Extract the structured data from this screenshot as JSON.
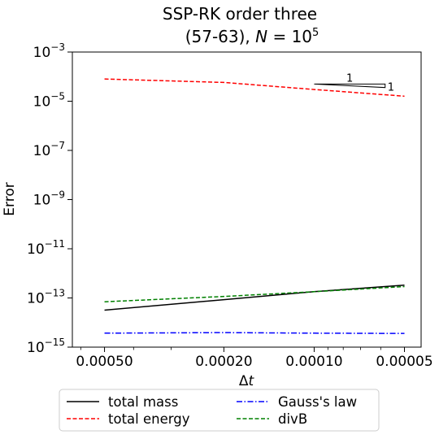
{
  "chart_data": {
    "type": "line",
    "title_line1": "SSP-RK order three",
    "title_line2_prefix": "(57-63), ",
    "title_line2_var": "N",
    "title_line2_eq": " = 10",
    "title_line2_exp": "5",
    "xlabel_delta": "Δ",
    "xlabel_var": "t",
    "ylabel": "Error",
    "x_scale": "log",
    "x_inverted": true,
    "y_scale": "log",
    "xlim": [
      0.00064,
      4.4e-05
    ],
    "ylim": [
      1e-15,
      0.001
    ],
    "x_ticks": [
      {
        "value": 0.0005,
        "label": "0.00050"
      },
      {
        "value": 0.0002,
        "label": "0.00020"
      },
      {
        "value": 0.0001,
        "label": "0.00010"
      },
      {
        "value": 5e-05,
        "label": "0.00005"
      }
    ],
    "y_ticks": [
      {
        "exp": -3,
        "base": "10",
        "sup": "−3"
      },
      {
        "exp": -5,
        "base": "10",
        "sup": "−5"
      },
      {
        "exp": -7,
        "base": "10",
        "sup": "−7"
      },
      {
        "exp": -9,
        "base": "10",
        "sup": "−9"
      },
      {
        "exp": -11,
        "base": "10",
        "sup": "−11"
      },
      {
        "exp": -13,
        "base": "10",
        "sup": "−13"
      },
      {
        "exp": -15,
        "base": "10",
        "sup": "−15"
      }
    ],
    "series": [
      {
        "name": "total mass",
        "color": "#000000",
        "dash": "solid",
        "x": [
          0.0005,
          0.0002,
          0.0001,
          5e-05
        ],
        "y": [
          3.2e-14,
          8.5e-14,
          1.8e-13,
          3.3e-13
        ]
      },
      {
        "name": "total energy",
        "color": "#ff0000",
        "dash": "dashed",
        "x": [
          0.0005,
          0.0002,
          0.0001,
          5e-05
        ],
        "y": [
          8e-05,
          5.8e-05,
          3e-05,
          1.6e-05
        ]
      },
      {
        "name": "Gauss's law",
        "color": "#0000ff",
        "dash": "dashdot",
        "x": [
          0.0005,
          0.0002,
          0.0001,
          5e-05
        ],
        "y": [
          3.7e-15,
          3.9e-15,
          3.7e-15,
          3.6e-15
        ]
      },
      {
        "name": "divB",
        "color": "#008000",
        "dash": "dashed",
        "x": [
          0.0005,
          0.0002,
          0.0001,
          5e-05
        ],
        "y": [
          7e-14,
          1.15e-13,
          1.8e-13,
          2.9e-13
        ]
      }
    ],
    "slope_triangle": {
      "labels": [
        "1",
        "1"
      ],
      "x": [
        0.0001,
        5.8e-05
      ],
      "y_top": 5e-05,
      "y_bottom": 3.6e-05
    },
    "legend": {
      "placement": "below-plot",
      "columns": [
        [
          "total mass",
          "total energy"
        ],
        [
          "Gauss's law",
          "divB"
        ]
      ]
    },
    "grid": false
  }
}
